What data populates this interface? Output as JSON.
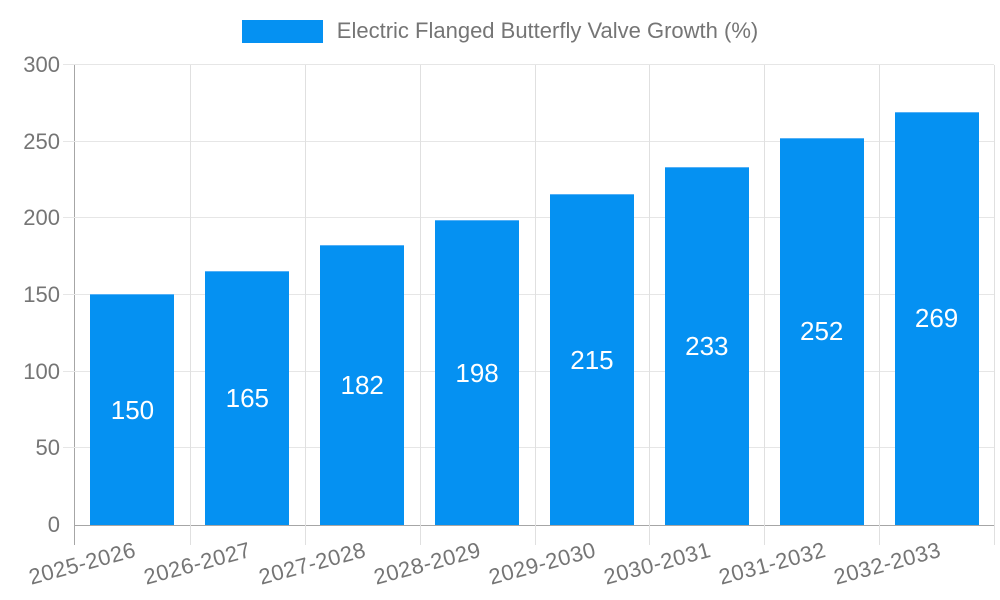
{
  "legend": {
    "label": "Electric Flanged Butterfly Valve Growth (%)"
  },
  "chart_data": {
    "type": "bar",
    "title": "Electric Flanged Butterfly Valve Growth (%)",
    "categories": [
      "2025-2026",
      "2026-2027",
      "2027-2028",
      "2028-2029",
      "2029-2030",
      "2030-2031",
      "2031-2032",
      "2032-2033"
    ],
    "values": [
      150,
      165,
      182,
      198,
      215,
      233,
      252,
      269
    ],
    "xlabel": "",
    "ylabel": "",
    "ylim": [
      0,
      300
    ],
    "yticks": [
      0,
      50,
      100,
      150,
      200,
      250,
      300
    ],
    "grid": "on",
    "legend_position": "top",
    "annotations": "values centered inside bars",
    "colors": {
      "bar": "#0591f2",
      "bar_top_edge": "#54b0f6",
      "annotation_text": "#ffffff",
      "axis_text": "#757575",
      "gridline": "#e6e6e6",
      "axis_line": "#a6a6a6",
      "background": "#ffffff"
    }
  }
}
